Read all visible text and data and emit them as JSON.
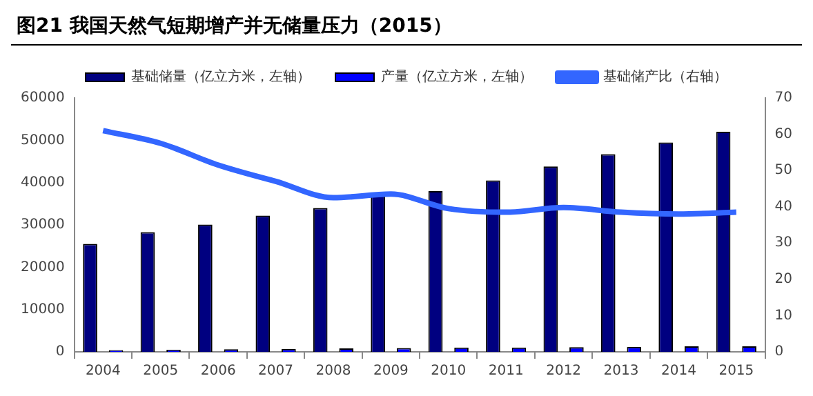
{
  "chart_data": {
    "type": "bar",
    "title": "图21 我国天然气短期增产并无储量压力（2015）",
    "categories": [
      "2004",
      "2005",
      "2006",
      "2007",
      "2008",
      "2009",
      "2010",
      "2011",
      "2012",
      "2013",
      "2014",
      "2015"
    ],
    "series": [
      {
        "name": "基础储量（亿立方米，左轴）",
        "color": "#000080",
        "values": [
          25500,
          28300,
          30100,
          32200,
          34000,
          37000,
          38000,
          40500,
          43800,
          46700,
          49500,
          52000
        ]
      },
      {
        "name": "产量（亿立方米，左轴）",
        "color": "#0000ff",
        "values": [
          400,
          500,
          600,
          700,
          800,
          900,
          1000,
          1000,
          1100,
          1200,
          1300,
          1300
        ]
      },
      {
        "name": "基础储产比（右轴）",
        "type": "line",
        "axis": "y2",
        "color": "#3366ff",
        "values": [
          61,
          57.5,
          51.5,
          47,
          42.5,
          43.5,
          39.5,
          38.5,
          39.8,
          38.5,
          38,
          38.5
        ]
      }
    ],
    "ylim": [
      0,
      60000
    ],
    "yticks": [
      0,
      10000,
      20000,
      30000,
      40000,
      50000,
      60000
    ],
    "y2lim": [
      0,
      70
    ],
    "y2ticks": [
      0,
      10,
      20,
      30,
      40,
      50,
      60,
      70
    ],
    "grid": false,
    "legend": "top",
    "marker": "none"
  }
}
